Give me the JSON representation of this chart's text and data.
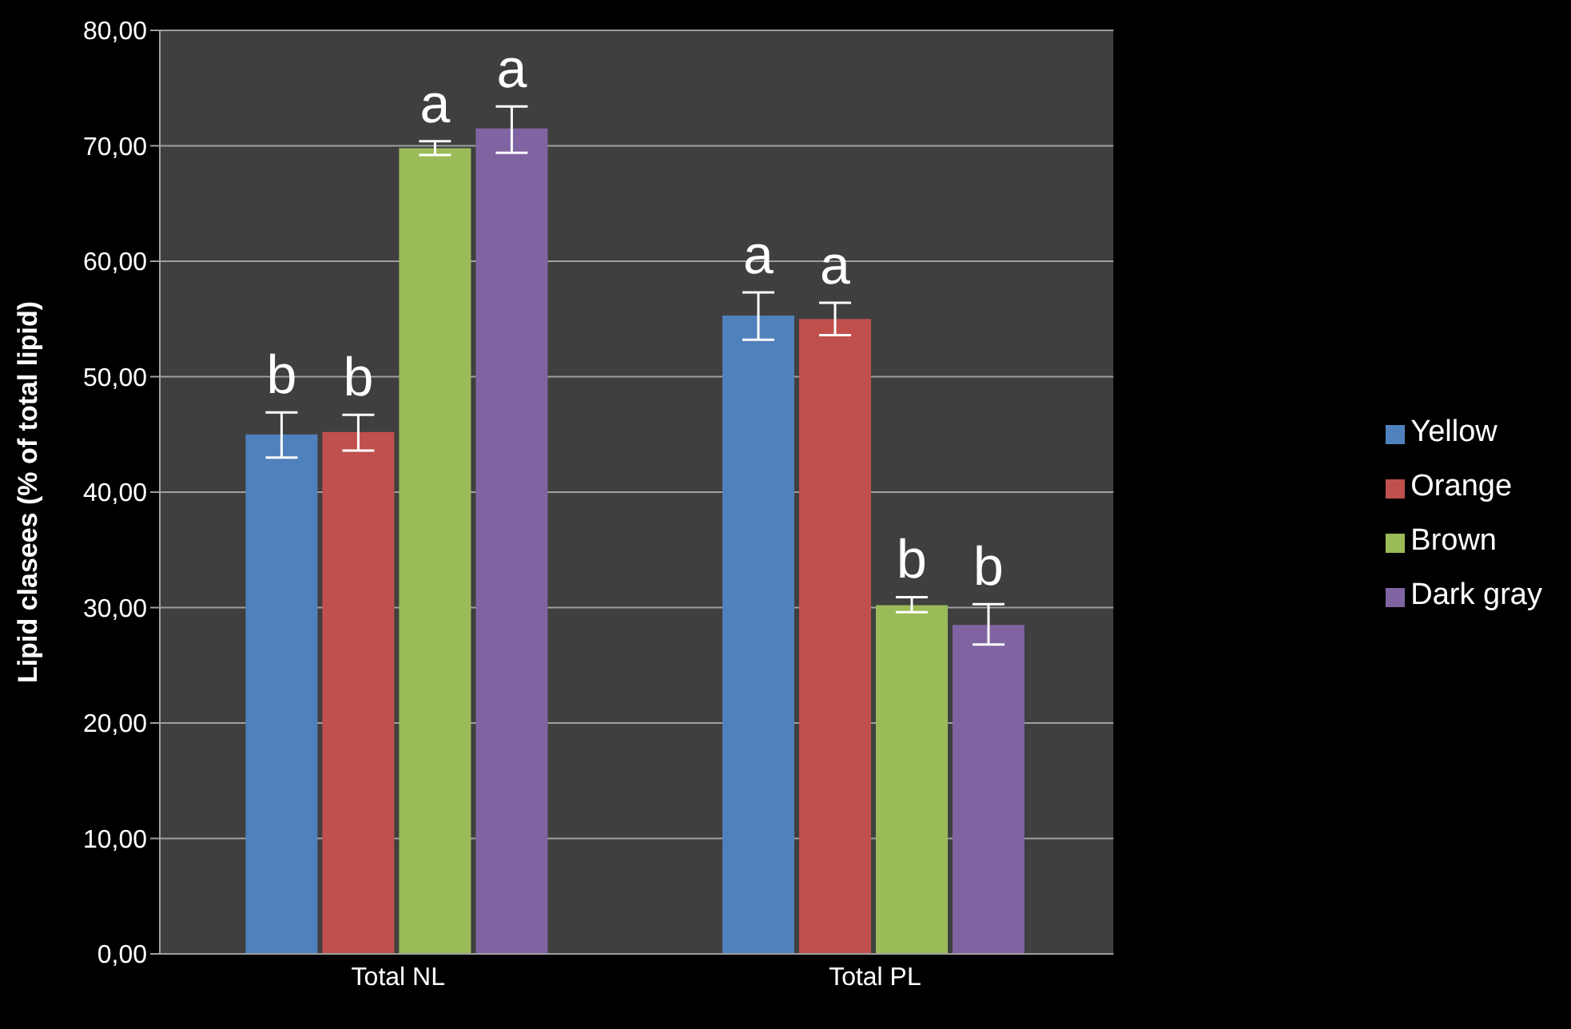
{
  "chart_data": {
    "type": "bar",
    "ylabel": "Lipid clasees (% of total lipid)",
    "categories": [
      "Total NL",
      "Total PL"
    ],
    "series": [
      {
        "name": "Yellow",
        "color": "#4f81bd",
        "values": [
          45.0,
          55.3
        ],
        "errors": [
          [
            43.0,
            46.9
          ],
          [
            53.2,
            57.3
          ]
        ],
        "value_labels": [
          "b",
          "a"
        ]
      },
      {
        "name": "Orange",
        "color": "#c0504d",
        "values": [
          45.2,
          55.0
        ],
        "errors": [
          [
            43.6,
            46.7
          ],
          [
            53.6,
            56.4
          ]
        ],
        "value_labels": [
          "b",
          "a"
        ]
      },
      {
        "name": "Brown",
        "color": "#9bbb59",
        "values": [
          69.8,
          30.2
        ],
        "errors": [
          [
            69.2,
            70.4
          ],
          [
            29.6,
            30.9
          ]
        ],
        "value_labels": [
          "a",
          "b"
        ]
      },
      {
        "name": "Dark gray",
        "color": "#8064a2",
        "values": [
          71.5,
          28.5
        ],
        "errors": [
          [
            69.4,
            73.4
          ],
          [
            26.8,
            30.3
          ]
        ],
        "value_labels": [
          "a",
          "b"
        ]
      }
    ],
    "ylim": [
      0,
      80
    ],
    "yticks": [
      {
        "value": 0,
        "label": "0,00"
      },
      {
        "value": 10,
        "label": "10,00"
      },
      {
        "value": 20,
        "label": "20,00"
      },
      {
        "value": 30,
        "label": "30,00"
      },
      {
        "value": 40,
        "label": "40,00"
      },
      {
        "value": 50,
        "label": "50,00"
      },
      {
        "value": 60,
        "label": "60,00"
      },
      {
        "value": 70,
        "label": "70,00"
      },
      {
        "value": 80,
        "label": "80,00"
      }
    ],
    "grid": "y",
    "legend": "right"
  }
}
